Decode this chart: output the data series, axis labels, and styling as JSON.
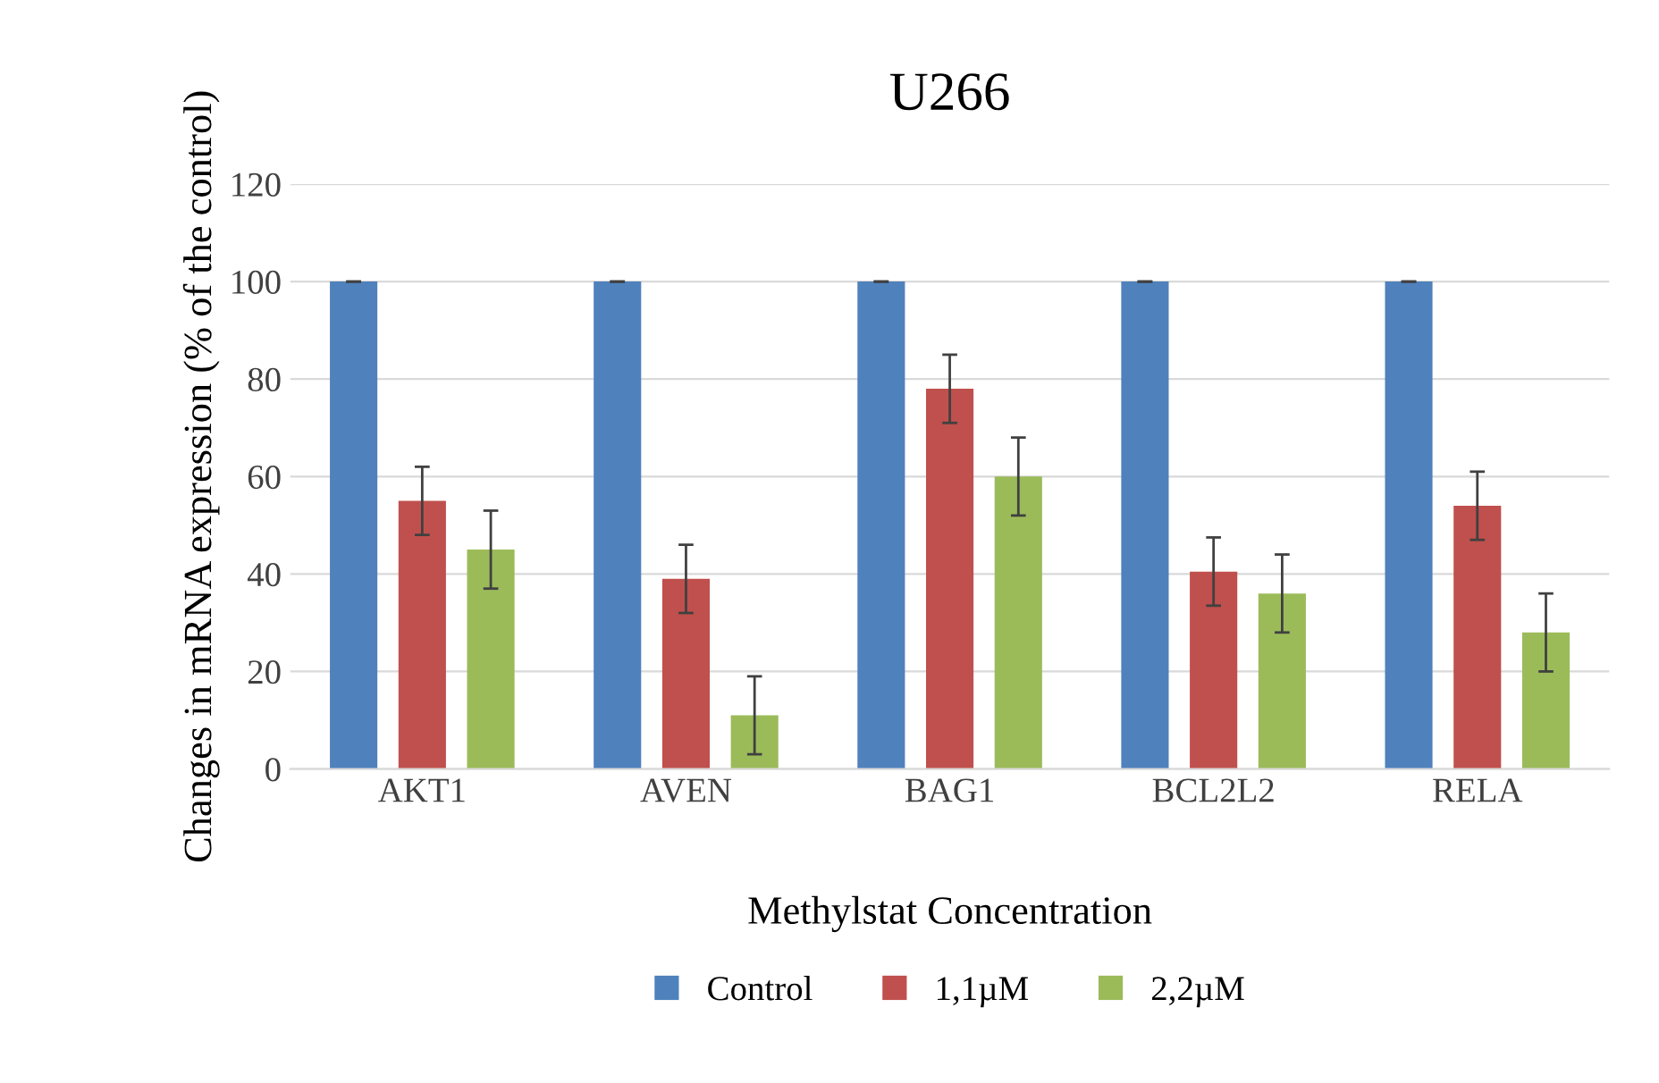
{
  "chart_data": {
    "type": "bar",
    "title": "U266",
    "xlabel": "Methylstat Concentration",
    "ylabel": "Changes in mRNA expression (% of the control)",
    "categories": [
      "AKT1",
      "AVEN",
      "BAG1",
      "BCL2L2",
      "RELA"
    ],
    "series": [
      {
        "name": "Control",
        "color": "#4f81bd",
        "values": [
          100,
          100,
          100,
          100,
          100
        ],
        "errors": [
          0,
          0,
          0,
          0,
          0
        ]
      },
      {
        "name": "1,1µM",
        "color": "#c0504d",
        "values": [
          55,
          39,
          78,
          40.5,
          54
        ],
        "errors": [
          7,
          7,
          7,
          7,
          7
        ]
      },
      {
        "name": "2,2µM",
        "color": "#9bbb59",
        "values": [
          45,
          11,
          60,
          36,
          28
        ],
        "errors": [
          8,
          8,
          8,
          8,
          8
        ]
      }
    ],
    "ylim": [
      0,
      120
    ],
    "yticks": [
      0,
      20,
      40,
      60,
      80,
      100,
      120
    ],
    "grid": "y",
    "legend": "bottom"
  }
}
